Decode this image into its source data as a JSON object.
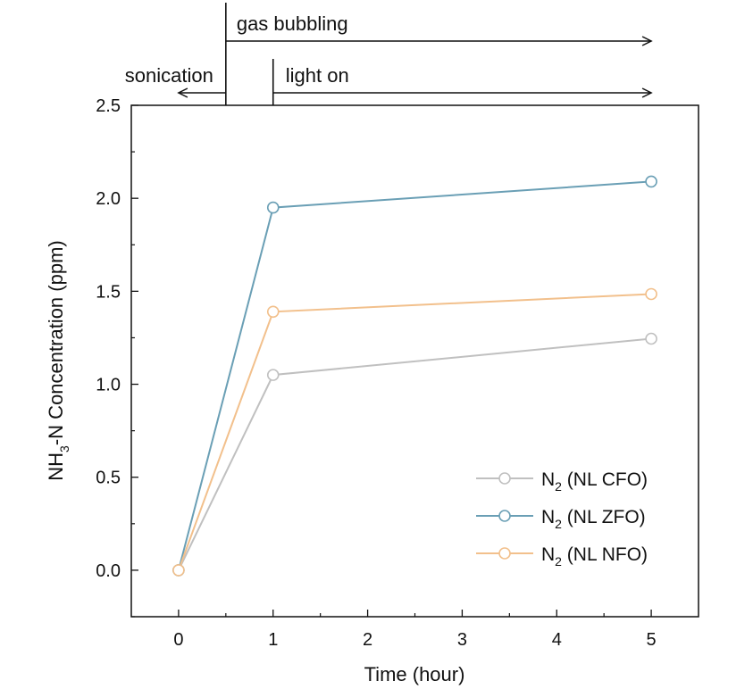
{
  "chart_data": {
    "type": "line",
    "title": "",
    "xlabel": "Time (hour)",
    "ylabel_main": "NH",
    "ylabel_sub": "3",
    "ylabel_rest": "-N Concentration (ppm)",
    "xlim": [
      -0.5,
      5.5
    ],
    "ylim": [
      -0.25,
      2.5
    ],
    "x_ticks": [
      0,
      1,
      2,
      3,
      4,
      5
    ],
    "x_tick_labels": [
      "0",
      "1",
      "2",
      "3",
      "4",
      "5"
    ],
    "y_ticks": [
      0.0,
      0.5,
      1.0,
      1.5,
      2.0,
      2.5
    ],
    "y_tick_labels": [
      "0.0",
      "0.5",
      "1.0",
      "1.5",
      "2.0",
      "2.5"
    ],
    "x": [
      0,
      1,
      5
    ],
    "series": [
      {
        "name": "N2 (NL CFO)",
        "label_main": "N",
        "label_sub": "2",
        "label_rest": " (NL CFO)",
        "color": "#c0c0c0",
        "values": [
          0.0,
          1.05,
          1.245
        ]
      },
      {
        "name": "N2 (NL ZFO)",
        "label_main": "N",
        "label_sub": "2",
        "label_rest": " (NL ZFO)",
        "color": "#6a9fb5",
        "values": [
          0.0,
          1.95,
          2.09
        ]
      },
      {
        "name": "N2 (NL NFO)",
        "label_main": "N",
        "label_sub": "2",
        "label_rest": " (NL NFO)",
        "color": "#f2c08c",
        "values": [
          0.0,
          1.39,
          1.485
        ]
      }
    ],
    "legend_position": "bottom-right",
    "annotations": [
      {
        "id": "gas",
        "text": "gas bubbling",
        "x_start": 0.5,
        "x_end": 5,
        "direction": "right"
      },
      {
        "id": "light",
        "text": "light on",
        "x_start": 1,
        "x_end": 5,
        "direction": "right"
      },
      {
        "id": "sonication",
        "text": "sonication",
        "x_start": 0.5,
        "x_end": 0,
        "direction": "left"
      }
    ]
  }
}
